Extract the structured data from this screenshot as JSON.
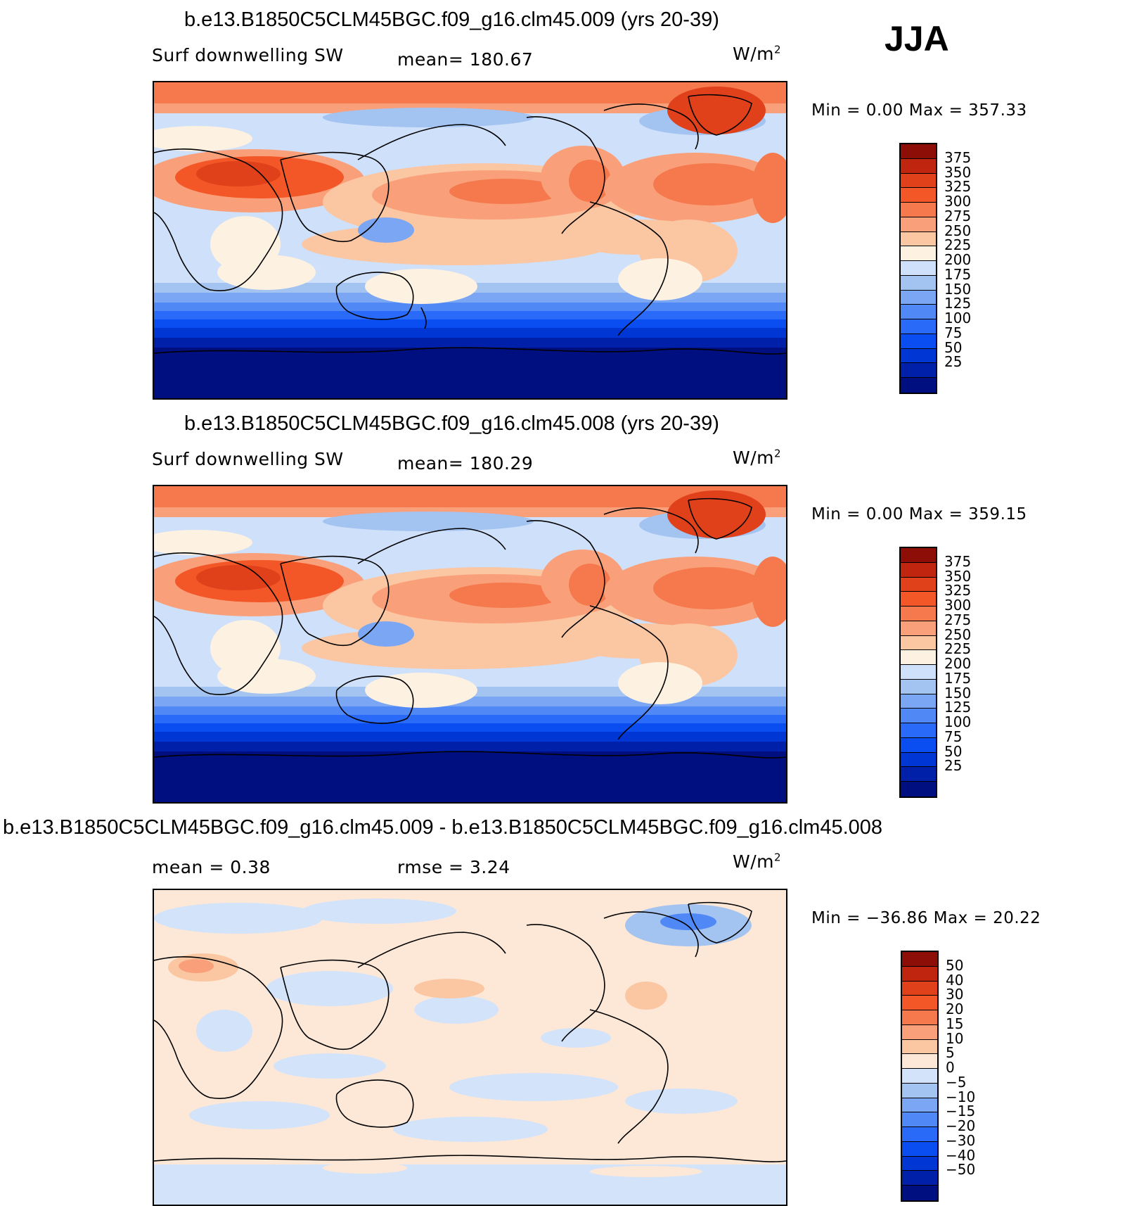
{
  "season": "JJA",
  "colors": {
    "abs": [
      "#000f7f",
      "#0020aa",
      "#0036d4",
      "#0a4df0",
      "#2a6af8",
      "#5089f6",
      "#7ba6f3",
      "#a3c3f1",
      "#cfe0fa",
      "#fdf1e1",
      "#fbc6a2",
      "#f9a07a",
      "#f5794d",
      "#f35727",
      "#e0401a",
      "#bf250f",
      "#8d0e06"
    ],
    "diff": [
      "#000f7f",
      "#0020aa",
      "#0036d4",
      "#0a4df0",
      "#2a6af8",
      "#5089f6",
      "#7ba6f3",
      "#a3c3f1",
      "#d3e3fa",
      "#fde8d7",
      "#fbc6a2",
      "#f9a07a",
      "#f5794d",
      "#f35727",
      "#e0401a",
      "#bf250f",
      "#8d0e06"
    ]
  },
  "panels": [
    {
      "title": "b.e13.B1850C5CLM45BGC.f09_g16.clm45.009 (yrs 20-39)",
      "left_label": "Surf downwelling SW",
      "center_label": "mean=  180.67",
      "units": "W/m",
      "units_exp": "2",
      "minmax": "Min =     0.00  Max  =  357.33",
      "colorbar_labels": [
        "375",
        "350",
        "325",
        "300",
        "275",
        "250",
        "225",
        "200",
        "175",
        "150",
        "125",
        "100",
        "75",
        "50",
        "25"
      ]
    },
    {
      "title": "b.e13.B1850C5CLM45BGC.f09_g16.clm45.008 (yrs 20-39)",
      "left_label": "Surf downwelling SW",
      "center_label": "mean=  180.29",
      "units": "W/m",
      "units_exp": "2",
      "minmax": "Min =     0.00  Max  =  359.15",
      "colorbar_labels": [
        "375",
        "350",
        "325",
        "300",
        "275",
        "250",
        "225",
        "200",
        "175",
        "150",
        "125",
        "100",
        "75",
        "50",
        "25"
      ]
    },
    {
      "title": "b.e13.B1850C5CLM45BGC.f09_g16.clm45.009 - b.e13.B1850C5CLM45BGC.f09_g16.clm45.008",
      "left_label": "mean  =     0.38",
      "center_label": "rmse  =     3.24",
      "units": "W/m",
      "units_exp": "2",
      "minmax": "Min  = −36.86  Max  =    20.22",
      "colorbar_labels": [
        "50",
        "40",
        "30",
        "20",
        "15",
        "10",
        "5",
        "0",
        "−5",
        "−10",
        "−15",
        "−20",
        "−30",
        "−40",
        "−50"
      ]
    }
  ]
}
